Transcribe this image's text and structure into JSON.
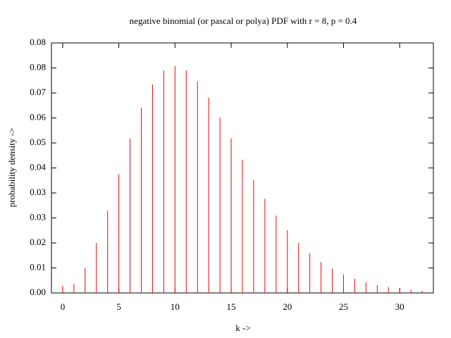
{
  "chart_data": {
    "type": "bar",
    "title": "negative binomial (or pascal or polya) PDF with r = 8, p = 0.4",
    "x_label": "k ->",
    "y_label": "probability density ->",
    "x": [
      0,
      1,
      2,
      3,
      4,
      5,
      6,
      7,
      8,
      9,
      10,
      11,
      12,
      13,
      14,
      15,
      16,
      17,
      18,
      19,
      20,
      21,
      22,
      23,
      24,
      25,
      26,
      27,
      28,
      29,
      30,
      31,
      32
    ],
    "values": [
      0.0024,
      0.0031,
      0.0085,
      0.017,
      0.028,
      0.0404,
      0.0525,
      0.063,
      0.0708,
      0.0756,
      0.0771,
      0.0757,
      0.0719,
      0.0664,
      0.0597,
      0.0526,
      0.0453,
      0.0384,
      0.032,
      0.0263,
      0.0213,
      0.017,
      0.0135,
      0.0105,
      0.0082,
      0.0063,
      0.0048,
      0.0036,
      0.0027,
      0.002,
      0.0015,
      0.0011,
      0.0008
    ],
    "color": "#ff0000",
    "xlim": [
      -1,
      33
    ],
    "xticks": [
      0,
      5,
      10,
      15,
      20,
      25,
      30
    ],
    "ylim": [
      0,
      0.085
    ],
    "yticks": [
      {
        "value": 0,
        "label": "0.00"
      },
      {
        "value": 0.0085,
        "label": "0.01"
      },
      {
        "value": 0.017,
        "label": "0.02"
      },
      {
        "value": 0.0255,
        "label": "0.03"
      },
      {
        "value": 0.034,
        "label": "0.03"
      },
      {
        "value": 0.0425,
        "label": "0.04"
      },
      {
        "value": 0.051,
        "label": "0.05"
      },
      {
        "value": 0.0595,
        "label": "0.06"
      },
      {
        "value": 0.068,
        "label": "0.07"
      },
      {
        "value": 0.0765,
        "label": "0.08"
      },
      {
        "value": 0.085,
        "label": "0.08"
      }
    ]
  }
}
